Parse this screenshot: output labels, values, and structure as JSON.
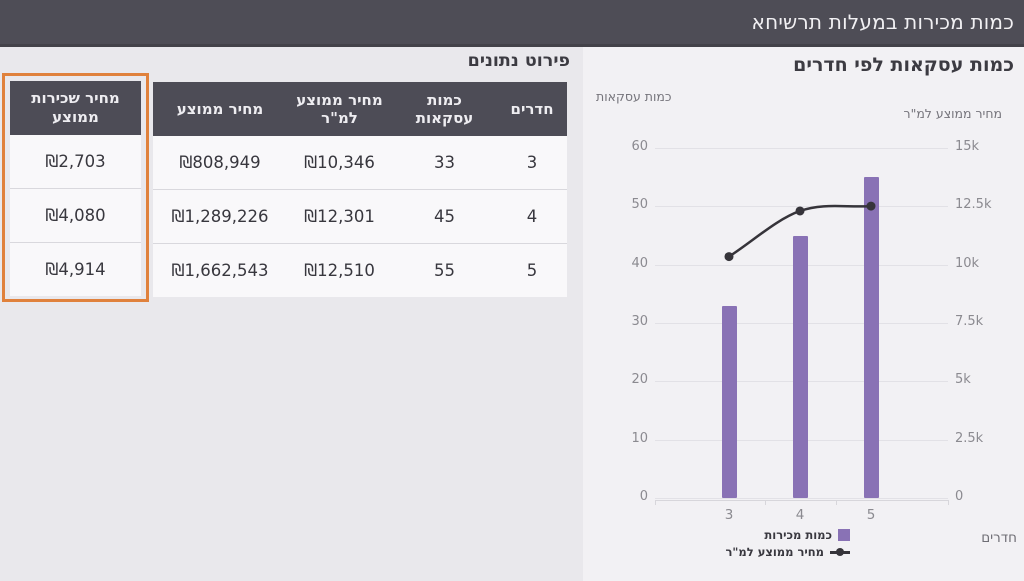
{
  "header": {
    "title": "כמות מכירות במעלות תרשיחא"
  },
  "table_section": {
    "title": "פירוט נתונים",
    "columns": [
      "חדרים",
      "כמות עסקאות",
      "מחיר ממוצע למ\"ר",
      "מחיר ממוצע"
    ],
    "rows": [
      [
        "3",
        "33",
        "₪10,346",
        "₪808,949"
      ],
      [
        "4",
        "45",
        "₪12,301",
        "₪1,289,226"
      ],
      [
        "5",
        "55",
        "₪12,510",
        "₪1,662,543"
      ]
    ]
  },
  "rent_column": {
    "header": "מחיר שכירות ממוצע",
    "values": [
      "₪2,703",
      "₪4,080",
      "₪4,914"
    ],
    "highlight_color": "#e0813c"
  },
  "chart_data": {
    "type": "bar+line",
    "title": "כמות עסקאות לפי חדרים",
    "categories": [
      "3",
      "4",
      "5"
    ],
    "series": [
      {
        "name": "כמות מכירות",
        "type": "bar",
        "axis": "left",
        "values": [
          33,
          45,
          55
        ],
        "color": "#8972b5"
      },
      {
        "name": "מחיר ממוצע למ\"ר",
        "type": "line",
        "axis": "right",
        "values": [
          10346,
          12301,
          12510
        ],
        "color": "#36343a"
      }
    ],
    "left_axis": {
      "title": "כמות עסקאות",
      "min": 0,
      "max": 60,
      "ticks": [
        "60",
        "50",
        "40",
        "30",
        "20",
        "10",
        "0"
      ]
    },
    "right_axis": {
      "title": "מחיר ממוצע למ\"ר",
      "min": 0,
      "max": 15000,
      "ticks": [
        "15k",
        "12.5k",
        "10k",
        "7.5k",
        "5k",
        "2.5k",
        "0"
      ]
    },
    "x_axis": {
      "title": "חדרים"
    },
    "grid": true,
    "legend_position": "bottom"
  }
}
